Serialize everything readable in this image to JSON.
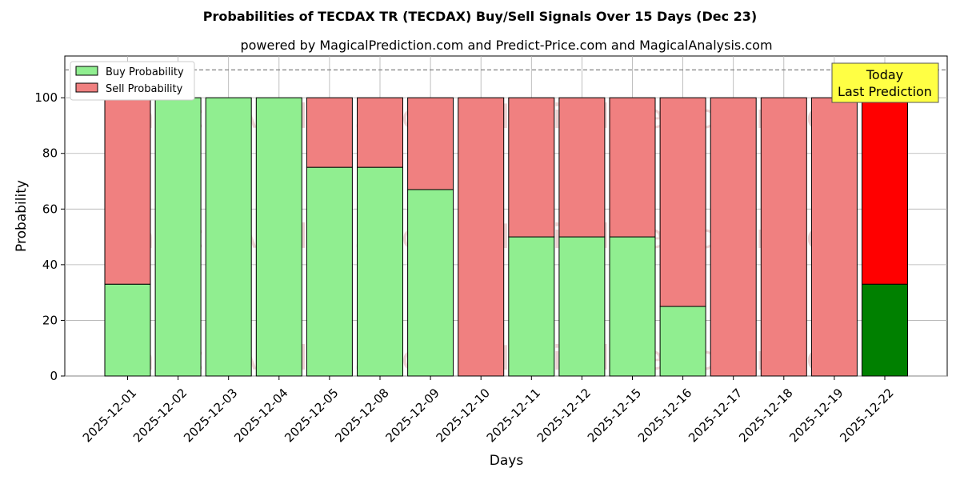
{
  "chart_data": {
    "type": "bar",
    "stacked": true,
    "title": "Probabilities of TECDAX TR (TECDAX) Buy/Sell Signals Over 15 Days (Dec 23)",
    "subtitle": "powered by MagicalPrediction.com and Predict-Price.com and MagicalAnalysis.com",
    "xlabel": "Days",
    "ylabel": "Probability",
    "ylim": [
      0,
      115
    ],
    "yticks": [
      0,
      20,
      40,
      60,
      80,
      100
    ],
    "reference_line": 110,
    "grid": true,
    "legend_placement": "top-left",
    "categories": [
      "2025-12-01",
      "2025-12-02",
      "2025-12-03",
      "2025-12-04",
      "2025-12-05",
      "2025-12-08",
      "2025-12-09",
      "2025-12-10",
      "2025-12-11",
      "2025-12-12",
      "2025-12-15",
      "2025-12-16",
      "2025-12-17",
      "2025-12-18",
      "2025-12-19",
      "2025-12-22"
    ],
    "series": [
      {
        "name": "Buy Probability",
        "color": "#90ee90",
        "values": [
          33,
          100,
          100,
          100,
          75,
          75,
          67,
          0,
          50,
          50,
          50,
          25,
          0,
          0,
          0,
          33
        ]
      },
      {
        "name": "Sell Probability",
        "color": "#f08080",
        "values": [
          67,
          0,
          0,
          0,
          25,
          25,
          33,
          100,
          50,
          50,
          50,
          75,
          100,
          100,
          100,
          67
        ]
      }
    ],
    "highlight": {
      "index": 15,
      "buy_color": "#008000",
      "sell_color": "#ff0000"
    },
    "annotation": {
      "lines": [
        "Today",
        "Last Prediction"
      ],
      "background": "#ffff44"
    },
    "watermarks": [
      "MagicalAnalysis.com",
      "MagicalPrediction.com"
    ]
  }
}
